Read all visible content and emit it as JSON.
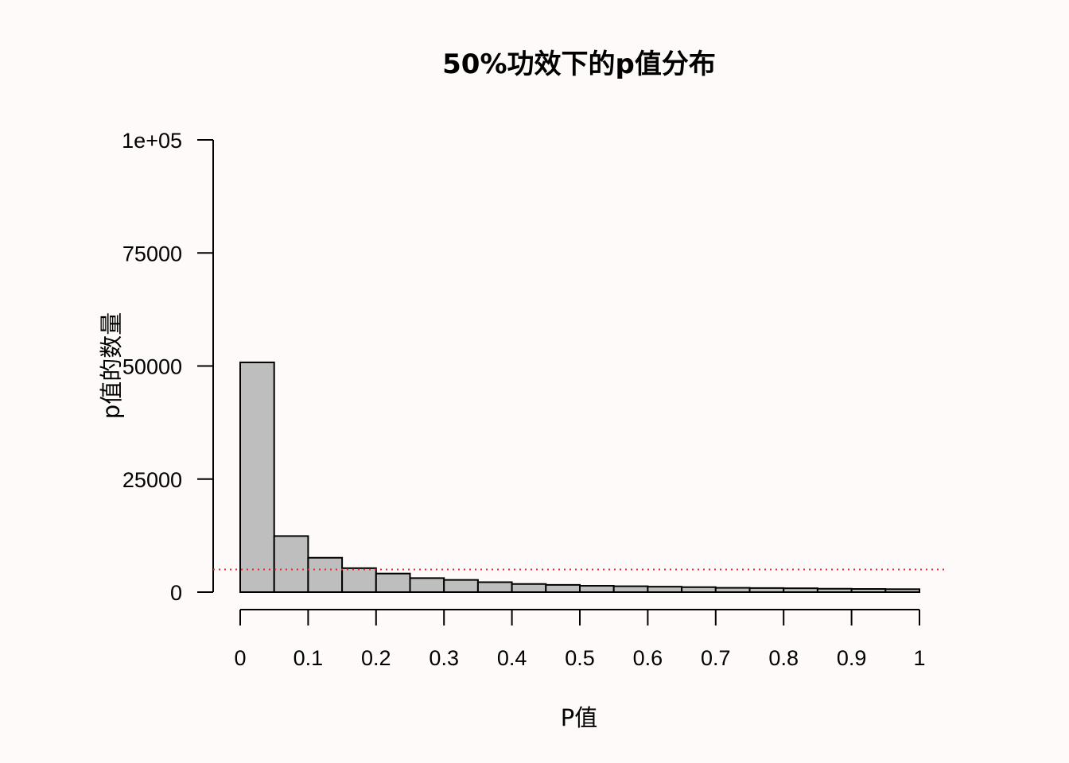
{
  "chart_data": {
    "type": "bar",
    "title": "50%功效下的p值分布",
    "xlabel": "P值",
    "ylabel": "p值的数量",
    "bin_width": 0.05,
    "x_bins": [
      0,
      0.05,
      0.1,
      0.15,
      0.2,
      0.25,
      0.3,
      0.35,
      0.4,
      0.45,
      0.5,
      0.55,
      0.6,
      0.65,
      0.7,
      0.75,
      0.8,
      0.85,
      0.9,
      0.95
    ],
    "values": [
      50800,
      12400,
      7600,
      5300,
      4100,
      3100,
      2700,
      2200,
      1800,
      1600,
      1400,
      1300,
      1200,
      1100,
      950,
      900,
      850,
      750,
      700,
      650
    ],
    "xlim": [
      0,
      1
    ],
    "ylim": [
      0,
      100000
    ],
    "x_ticks": [
      0,
      0.1,
      0.2,
      0.3,
      0.4,
      0.5,
      0.6,
      0.7,
      0.8,
      0.9,
      1
    ],
    "x_tick_labels": [
      "0",
      "0.1",
      "0.2",
      "0.3",
      "0.4",
      "0.5",
      "0.6",
      "0.7",
      "0.8",
      "0.9",
      "1"
    ],
    "y_ticks": [
      0,
      25000,
      50000,
      75000,
      100000
    ],
    "y_tick_labels": [
      "0",
      "25000",
      "50000",
      "75000",
      "1e+05"
    ],
    "reference_line": {
      "y": 5000,
      "style": "dotted",
      "color": "#e8262a"
    },
    "bar_fill": "#bebebe",
    "bar_stroke": "#000000",
    "grid": false,
    "legend": "none"
  }
}
